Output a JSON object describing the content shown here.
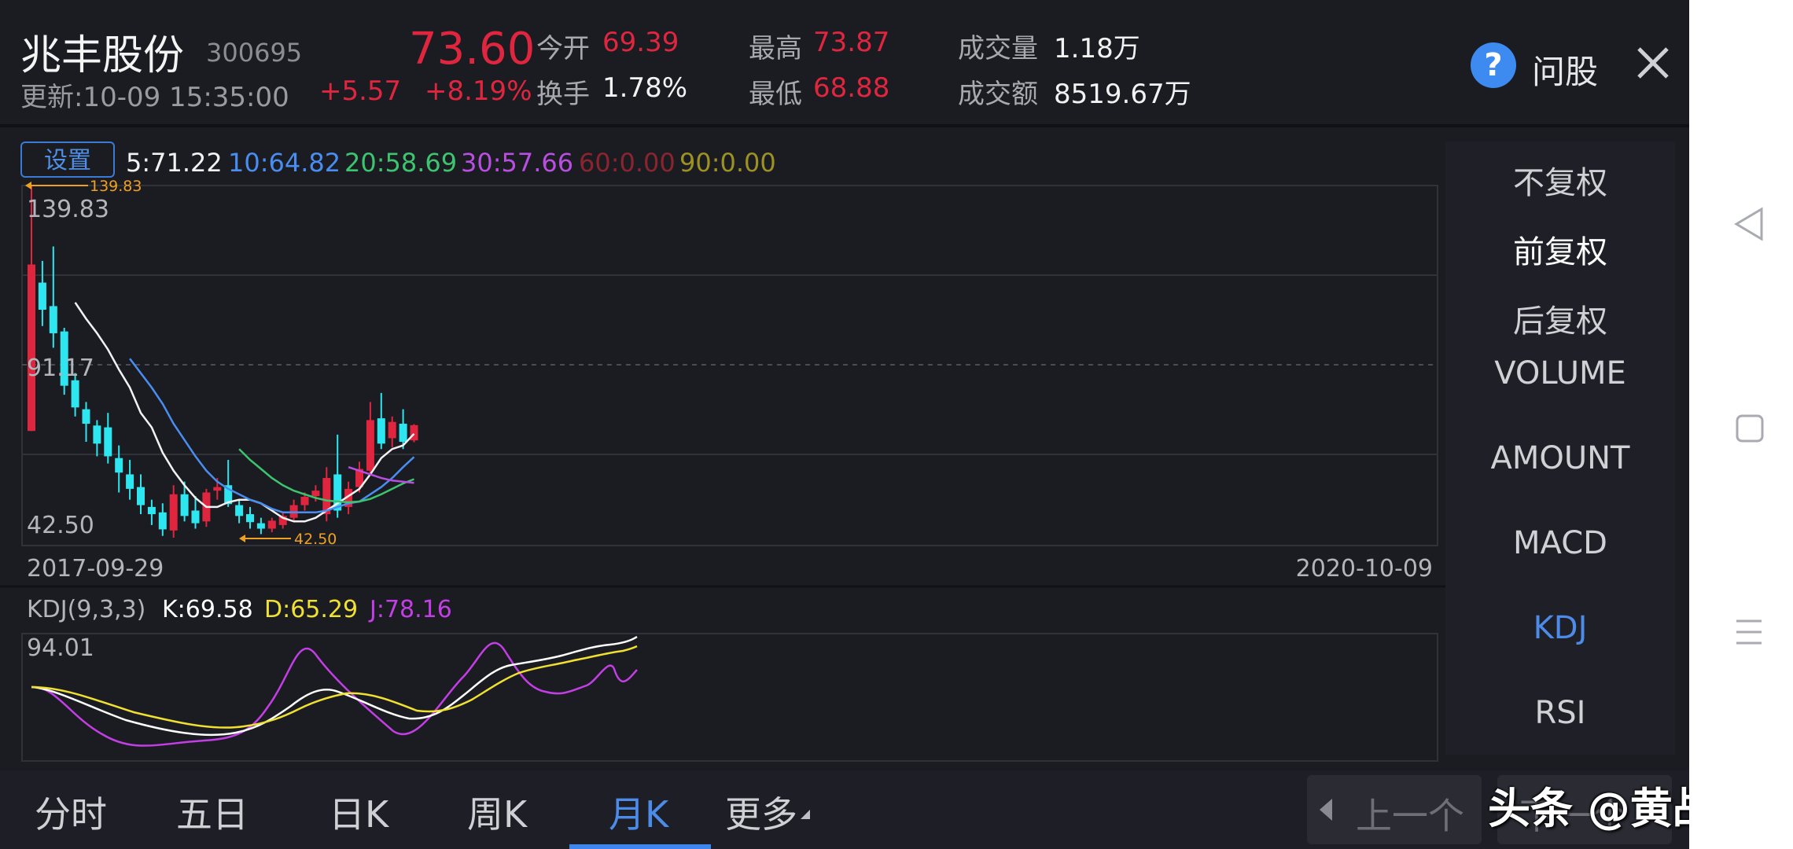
{
  "header": {
    "stock_name": "兆丰股份",
    "stock_code": "300695",
    "update_time": "更新:10-09 15:35:00",
    "price": "73.60",
    "change": "+5.57",
    "change_pct": "+8.19%",
    "open_label": "今开",
    "open_value": "69.39",
    "turnover_label": "换手",
    "turnover_value": "1.78%",
    "high_label": "最高",
    "high_value": "73.87",
    "low_label": "最低",
    "low_value": "68.88",
    "volume_label": "成交量",
    "volume_value": "1.18万",
    "amount_label": "成交额",
    "amount_value": "8519.67万",
    "ask_label": "问股",
    "ask_icon": "question-icon",
    "close_icon": "close-icon"
  },
  "chart": {
    "settings_label": "设置",
    "ma": [
      {
        "text": "5:71.22",
        "color": "#f2f2f2"
      },
      {
        "text": "10:64.82",
        "color": "#4a8df0"
      },
      {
        "text": "20:58.69",
        "color": "#3cc46e"
      },
      {
        "text": "30:57.66",
        "color": "#b84fe0"
      },
      {
        "text": "60:0.00",
        "color": "#8a2530"
      },
      {
        "text": "90:0.00",
        "color": "#9c9222"
      }
    ],
    "high_marker": "139.83",
    "low_marker": "42.50",
    "axis_top": "139.83",
    "axis_mid": "91.17",
    "axis_bottom": "42.50",
    "start_date": "2017-09-29",
    "end_date": "2020-10-09"
  },
  "kdj": {
    "title": "KDJ(9,3,3)",
    "k": "K:69.58",
    "d": "D:65.29",
    "j": "J:78.16",
    "axis_top": "94.01"
  },
  "right_panel": [
    "不复权",
    "前复权",
    "后复权",
    "VOLUME",
    "AMOUNT",
    "MACD",
    "KDJ",
    "RSI"
  ],
  "bottom_tabs": [
    "分时",
    "五日",
    "日K",
    "周K",
    "月K",
    "更多"
  ],
  "prev_label": "上一个",
  "next_label": "下一个",
  "watermark": "头条 @黄战辉",
  "colors": {
    "up": "#e0263f",
    "down": "#2ee6f0",
    "accent": "#3d86ec",
    "background": "#1b1c22"
  },
  "chart_data": {
    "type": "candlestick",
    "x_start": "2017-09-29",
    "x_end": "2020-10-09",
    "ylim": [
      42.5,
      139.83
    ],
    "candles": [
      {
        "o": 72.0,
        "h": 139.83,
        "l": 72.0,
        "c": 118.0
      },
      {
        "o": 113.0,
        "h": 119.0,
        "l": 101.0,
        "c": 105.5
      },
      {
        "o": 106.5,
        "h": 123.0,
        "l": 95.0,
        "c": 99.0
      },
      {
        "o": 99.5,
        "h": 100.5,
        "l": 82.0,
        "c": 84.5
      },
      {
        "o": 86.0,
        "h": 88.0,
        "l": 76.0,
        "c": 78.5
      },
      {
        "o": 78.0,
        "h": 80.0,
        "l": 69.0,
        "c": 74.0
      },
      {
        "o": 73.5,
        "h": 75.0,
        "l": 65.0,
        "c": 68.5
      },
      {
        "o": 73.0,
        "h": 77.0,
        "l": 63.0,
        "c": 65.0
      },
      {
        "o": 64.5,
        "h": 68.0,
        "l": 55.0,
        "c": 60.5
      },
      {
        "o": 60.0,
        "h": 64.0,
        "l": 53.0,
        "c": 56.0
      },
      {
        "o": 56.5,
        "h": 60.0,
        "l": 49.0,
        "c": 51.5
      },
      {
        "o": 51.0,
        "h": 53.0,
        "l": 46.0,
        "c": 49.0
      },
      {
        "o": 49.5,
        "h": 52.0,
        "l": 43.0,
        "c": 44.8
      },
      {
        "o": 44.5,
        "h": 57.0,
        "l": 42.5,
        "c": 54.5
      },
      {
        "o": 54.5,
        "h": 58.0,
        "l": 47.0,
        "c": 48.5
      },
      {
        "o": 50.0,
        "h": 54.0,
        "l": 45.0,
        "c": 46.5
      },
      {
        "o": 47.0,
        "h": 56.0,
        "l": 45.5,
        "c": 55.0
      },
      {
        "o": 55.5,
        "h": 59.0,
        "l": 53.0,
        "c": 56.5
      },
      {
        "o": 57.0,
        "h": 64.0,
        "l": 51.0,
        "c": 51.8
      },
      {
        "o": 51.5,
        "h": 53.0,
        "l": 46.5,
        "c": 48.5
      },
      {
        "o": 49.0,
        "h": 51.0,
        "l": 45.0,
        "c": 46.8
      },
      {
        "o": 46.5,
        "h": 48.0,
        "l": 43.5,
        "c": 45.0
      },
      {
        "o": 45.0,
        "h": 48.0,
        "l": 44.0,
        "c": 47.2
      },
      {
        "o": 46.0,
        "h": 49.5,
        "l": 45.0,
        "c": 48.5
      },
      {
        "o": 48.0,
        "h": 53.0,
        "l": 47.0,
        "c": 51.5
      },
      {
        "o": 51.5,
        "h": 55.0,
        "l": 50.0,
        "c": 53.8
      },
      {
        "o": 54.0,
        "h": 57.0,
        "l": 52.5,
        "c": 55.5
      },
      {
        "o": 49.0,
        "h": 62.0,
        "l": 47.0,
        "c": 59.0
      },
      {
        "o": 60.0,
        "h": 71.0,
        "l": 48.0,
        "c": 50.0
      },
      {
        "o": 51.0,
        "h": 58.0,
        "l": 49.0,
        "c": 56.0
      },
      {
        "o": 56.5,
        "h": 63.5,
        "l": 55.0,
        "c": 61.5
      },
      {
        "o": 61.0,
        "h": 80.0,
        "l": 60.0,
        "c": 75.0
      },
      {
        "o": 75.5,
        "h": 82.5,
        "l": 67.0,
        "c": 68.5
      },
      {
        "o": 70.0,
        "h": 76.0,
        "l": 67.5,
        "c": 74.5
      },
      {
        "o": 74.0,
        "h": 78.0,
        "l": 67.0,
        "c": 69.0
      },
      {
        "o": 69.39,
        "h": 73.87,
        "l": 68.88,
        "c": 73.6
      }
    ],
    "ma_series": [
      {
        "color": "#f2f2f2",
        "values": [
          null,
          null,
          null,
          null,
          107.5,
          103.0,
          99.0,
          94.5,
          89.0,
          84.0,
          77.0,
          73.0,
          66.0,
          61.0,
          57.0,
          53.5,
          51.0,
          51.0,
          52.3,
          53.0,
          53.0,
          52.0,
          50.0,
          48.0,
          47.0,
          47.0,
          48.0,
          50.0,
          52.0,
          54.0,
          56.0,
          60.0,
          64.5,
          67.0,
          68.0,
          71.22
        ]
      },
      {
        "color": "#4a8df0",
        "values": [
          null,
          null,
          null,
          null,
          null,
          null,
          null,
          null,
          null,
          92.0,
          88.0,
          84.0,
          79.5,
          74.0,
          69.5,
          65.0,
          61.0,
          58.0,
          56.0,
          54.5,
          53.0,
          52.0,
          50.5,
          49.5,
          49.5,
          49.5,
          49.5,
          50.0,
          51.0,
          52.0,
          52.5,
          54.5,
          56.5,
          59.0,
          62.0,
          64.82
        ]
      },
      {
        "color": "#3cc46e",
        "values": [
          null,
          null,
          null,
          null,
          null,
          null,
          null,
          null,
          null,
          null,
          null,
          null,
          null,
          null,
          null,
          null,
          null,
          null,
          null,
          67.0,
          64.0,
          61.5,
          59.0,
          57.0,
          55.5,
          54.5,
          53.5,
          52.8,
          52.5,
          52.3,
          52.5,
          53.2,
          54.5,
          56.0,
          57.5,
          58.69
        ]
      },
      {
        "color": "#b84fe0",
        "values": [
          null,
          null,
          null,
          null,
          null,
          null,
          null,
          null,
          null,
          null,
          null,
          null,
          null,
          null,
          null,
          null,
          null,
          null,
          null,
          null,
          null,
          null,
          null,
          null,
          null,
          null,
          null,
          null,
          null,
          62.0,
          61.0,
          60.0,
          59.0,
          58.3,
          58.0,
          57.66
        ]
      }
    ]
  }
}
